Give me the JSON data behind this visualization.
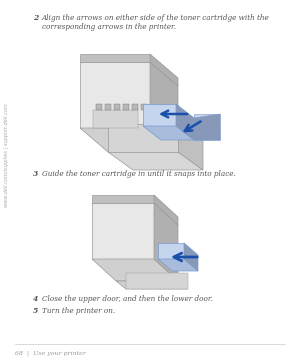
{
  "background_color": "#ffffff",
  "footer_text": "68  |  Use your printer",
  "sidebar_text": "www.dell.com/supplies | support.dell.com",
  "step2_number": "2",
  "step2_text": "Align the arrows on either side of the toner cartridge with the corresponding arrows in the printer.",
  "step3_number": "3",
  "step3_text": "Guide the toner cartridge in until it snaps into place.",
  "step4_number": "4",
  "step4_text": "Close the upper door, and then the lower door.",
  "step5_number": "5",
  "step5_text": "Turn the printer on.",
  "text_color": "#555555",
  "sidebar_color": "#aaaaaa",
  "footer_color": "#999999",
  "arrow_color": "#1a4faa",
  "printer_body_light": "#e8e8e8",
  "printer_body_mid": "#d0d0d0",
  "printer_body_dark": "#b0b0b0",
  "printer_body_shadow": "#c0c0c0",
  "printer_top_light": "#e0e0e0",
  "printer_top_dark": "#c8c8c8",
  "toner_light": "#c5d5ee",
  "toner_mid": "#aabcdc",
  "toner_dark": "#8898b8",
  "open_door_light": "#d8d8d8",
  "open_door_dark": "#c0c0c0",
  "inner_color": "#d5d5d5",
  "roller_color": "#b8b8b8",
  "font_size_body": 5.2,
  "font_size_step_num": 5.5,
  "font_size_footer": 4.5,
  "font_size_sidebar": 3.6
}
